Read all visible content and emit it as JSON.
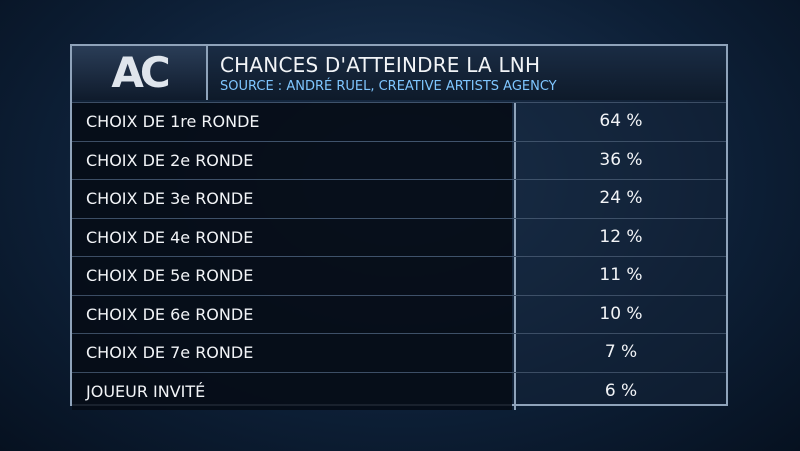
{
  "logo": "AC",
  "header": {
    "title": "CHANCES D'ATTEINDRE LA LNH",
    "subtitle": "SOURCE : ANDRÉ RUEL, CREATIVE ARTISTS AGENCY"
  },
  "table": {
    "rows": [
      [
        "CHOIX DE 1re RONDE",
        "64 %"
      ],
      [
        "CHOIX DE 2e RONDE",
        "36 %"
      ],
      [
        "CHOIX DE 3e RONDE",
        "24 %"
      ],
      [
        "CHOIX DE 4e RONDE",
        "12 %"
      ],
      [
        "CHOIX DE 5e RONDE",
        "11 %"
      ],
      [
        "CHOIX DE 6e RONDE",
        "10 %"
      ],
      [
        "CHOIX DE 7e RONDE",
        "7 %"
      ],
      [
        "JOUEUR INVITÉ",
        "6 %"
      ]
    ]
  }
}
